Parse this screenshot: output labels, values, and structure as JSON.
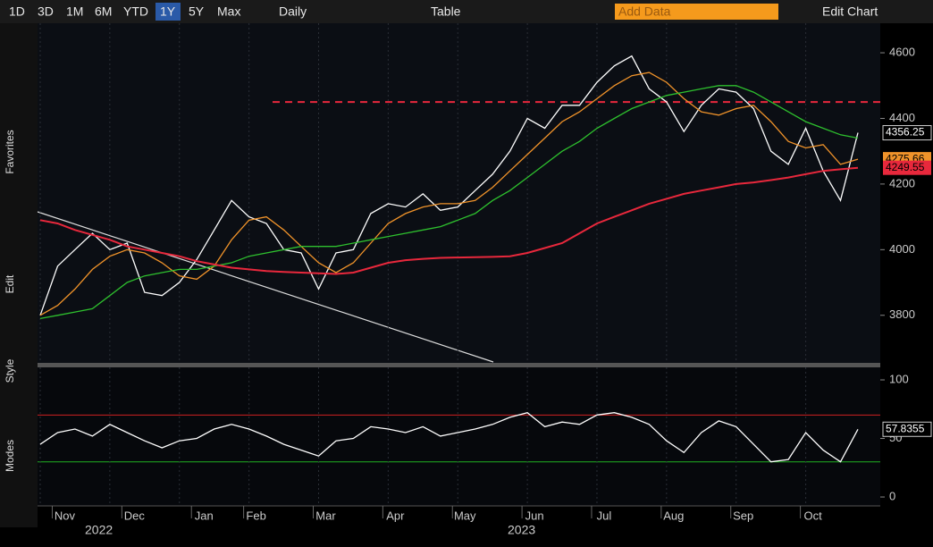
{
  "toolbar": {
    "periods": [
      "1D",
      "3D",
      "1M",
      "6M",
      "YTD",
      "1Y",
      "5Y",
      "Max"
    ],
    "active_period": "1Y",
    "frequency": "Daily",
    "table": "Table",
    "add_data": "Add Data",
    "edit_chart": "Edit Chart"
  },
  "sidebar": {
    "sections": [
      "Favorites",
      "Edit",
      "Style",
      "Modes"
    ]
  },
  "chart_data": [
    {
      "type": "line",
      "categories": [
        null,
        "Nov",
        null,
        null,
        null,
        "Dec",
        null,
        null,
        null,
        "Jan",
        null,
        null,
        "Feb",
        null,
        null,
        null,
        "Mar",
        null,
        null,
        null,
        "Apr",
        null,
        null,
        null,
        "May",
        null,
        null,
        null,
        "Jun",
        null,
        null,
        null,
        "Jul",
        null,
        null,
        null,
        "Aug",
        null,
        null,
        null,
        "Sep",
        null,
        null,
        null,
        "Oct",
        null,
        null,
        null
      ],
      "year_labels": [
        "2022",
        "2023"
      ],
      "series": [
        {
          "color": "#ffffff",
          "values": [
            3800,
            3950,
            4000,
            4050,
            4000,
            4020,
            3870,
            3860,
            3900,
            3970,
            4060,
            4150,
            4100,
            4080,
            4000,
            3990,
            3880,
            3990,
            4000,
            4110,
            4140,
            4130,
            4170,
            4120,
            4130,
            4180,
            4230,
            4300,
            4400,
            4370,
            4440,
            4440,
            4510,
            4560,
            4590,
            4490,
            4450,
            4360,
            4440,
            4490,
            4480,
            4430,
            4300,
            4260,
            4370,
            4240,
            4150,
            4356.25
          ]
        },
        {
          "color": "#f0932a",
          "values": [
            3800,
            3830,
            3880,
            3940,
            3980,
            4000,
            3990,
            3960,
            3920,
            3910,
            3950,
            4030,
            4090,
            4100,
            4060,
            4010,
            3960,
            3930,
            3960,
            4020,
            4080,
            4110,
            4130,
            4140,
            4140,
            4150,
            4190,
            4240,
            4290,
            4340,
            4390,
            4420,
            4460,
            4500,
            4530,
            4540,
            4510,
            4460,
            4420,
            4410,
            4430,
            4440,
            4390,
            4330,
            4310,
            4320,
            4260,
            4275.66
          ]
        },
        {
          "color": "#2ec02e",
          "values": [
            3790,
            3800,
            3810,
            3820,
            3860,
            3900,
            3920,
            3930,
            3940,
            3940,
            3950,
            3960,
            3980,
            3990,
            4000,
            4010,
            4010,
            4010,
            4020,
            4030,
            4040,
            4050,
            4060,
            4070,
            4090,
            4110,
            4150,
            4180,
            4220,
            4260,
            4300,
            4330,
            4370,
            4400,
            4430,
            4450,
            4470,
            4480,
            4490,
            4500,
            4500,
            4480,
            4450,
            4420,
            4390,
            4370,
            4350,
            4340
          ]
        },
        {
          "color": "#e8283c",
          "values": [
            4090,
            4080,
            4060,
            4045,
            4030,
            4010,
            4000,
            3990,
            3980,
            3965,
            3955,
            3945,
            3940,
            3935,
            3932,
            3930,
            3928,
            3926,
            3930,
            3945,
            3960,
            3968,
            3972,
            3975,
            3976,
            3977,
            3978,
            3980,
            3990,
            4005,
            4020,
            4050,
            4080,
            4100,
            4120,
            4140,
            4155,
            4170,
            4180,
            4190,
            4200,
            4205,
            4212,
            4220,
            4230,
            4240,
            4245,
            4249.55
          ]
        }
      ],
      "reference_line": {
        "value": 4450,
        "color": "#e8283c"
      },
      "ylim": [
        3655,
        4690
      ],
      "yticks": [
        3800,
        4000,
        4200,
        4400,
        4600
      ]
    },
    {
      "type": "line",
      "series": [
        {
          "color": "#ffffff",
          "values": [
            45,
            55,
            58,
            52,
            62,
            55,
            48,
            42,
            48,
            50,
            58,
            62,
            58,
            52,
            45,
            40,
            35,
            48,
            50,
            60,
            58,
            55,
            60,
            52,
            55,
            58,
            62,
            68,
            72,
            60,
            64,
            62,
            70,
            72,
            68,
            62,
            48,
            38,
            55,
            65,
            60,
            45,
            30,
            32,
            55,
            40,
            30,
            57.8355
          ]
        }
      ],
      "levels": [
        {
          "value": 70,
          "color": "#d02020"
        },
        {
          "value": 30,
          "color": "#20b020"
        }
      ],
      "ylim": [
        -7.6,
        110.7
      ],
      "yticks": [
        0,
        50,
        100
      ]
    }
  ]
}
